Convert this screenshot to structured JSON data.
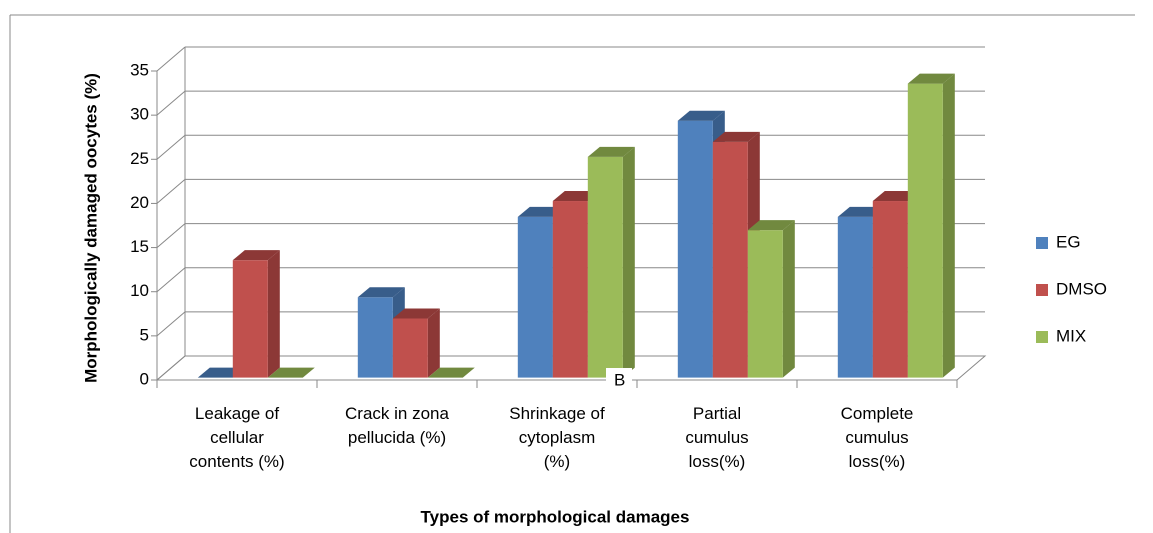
{
  "chart_data": {
    "type": "bar3d",
    "y_axis_label": "Morphologically damaged oocytes (%)",
    "x_axis_label": "Types of morphological damages",
    "annotation": "B",
    "categories": [
      "Leakage of\ncellular\ncontents (%)",
      "Crack in zona\npellucida (%)",
      "Shrinkage of\ncytoplasm\n(%)",
      "Partial\ncumulus\nloss(%)",
      "Complete\ncumulus\nloss(%)"
    ],
    "series": [
      {
        "name": "EG",
        "color": "#4f81bd",
        "side": "#385d8a",
        "values": [
          0,
          9.1,
          18.2,
          29.1,
          18.2
        ]
      },
      {
        "name": "DMSO",
        "color": "#c0504d",
        "side": "#8c3836",
        "values": [
          13.3,
          6.7,
          20,
          26.7,
          20
        ]
      },
      {
        "name": "MIX",
        "color": "#9bbb59",
        "side": "#71893f",
        "values": [
          0,
          0,
          25,
          16.7,
          33.3
        ]
      }
    ],
    "ylim": [
      0,
      35
    ],
    "yticks": [
      0,
      5,
      10,
      15,
      20,
      25,
      30,
      35
    ],
    "grid": true,
    "legend": "right"
  }
}
